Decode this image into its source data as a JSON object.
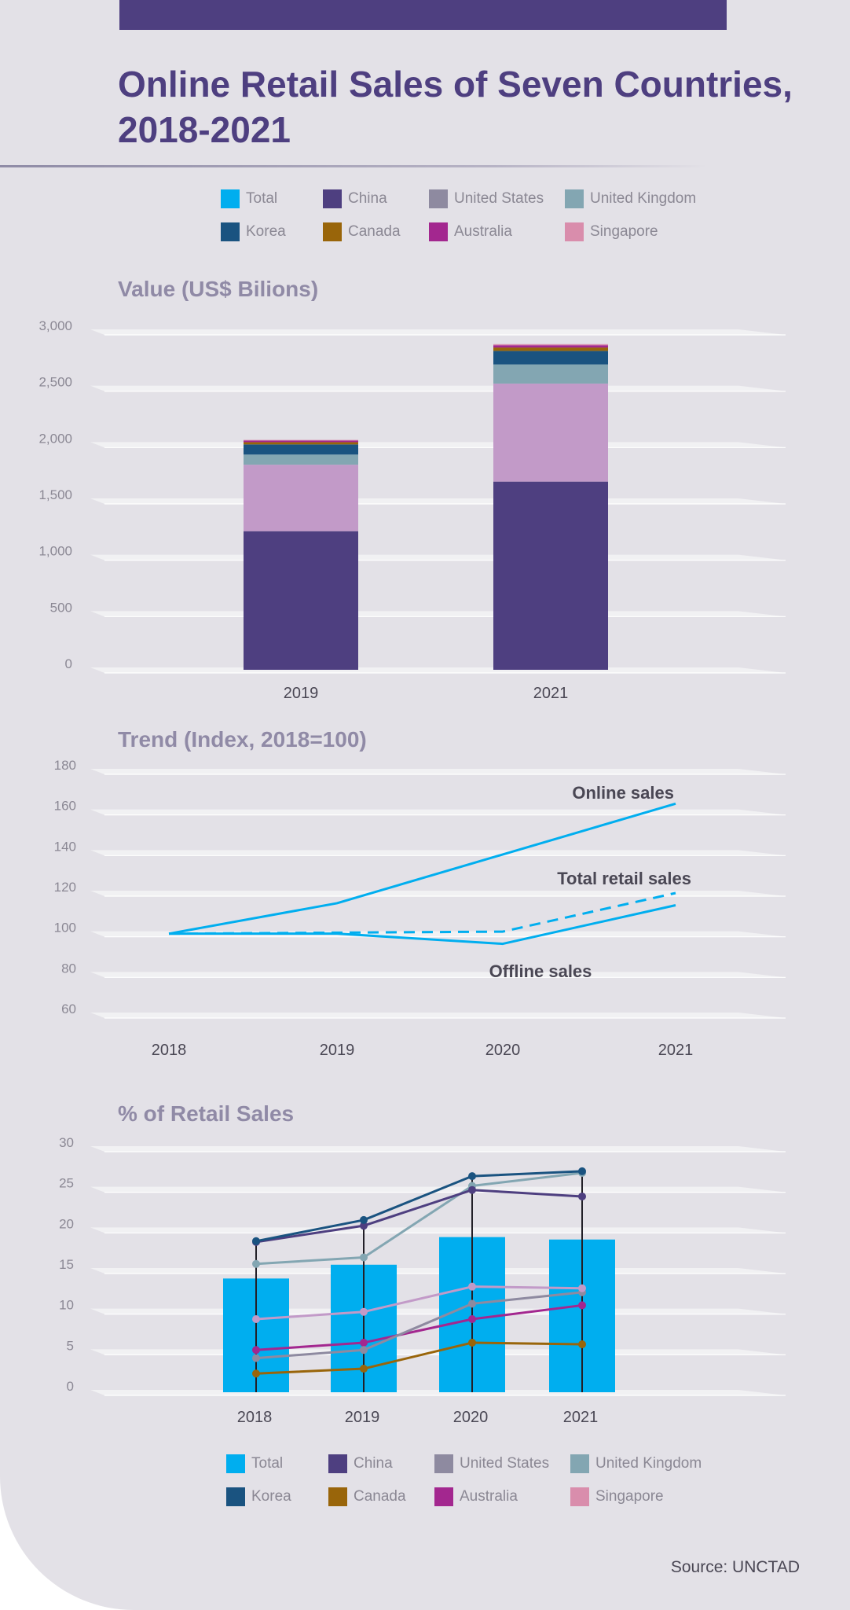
{
  "title_lines": [
    "Online Retail Sales of Seven Countries,",
    "2018-2021"
  ],
  "legend": [
    {
      "label": "Total",
      "color": "#00aeef"
    },
    {
      "label": "China",
      "color": "#4e3f80"
    },
    {
      "label": "United States",
      "color": "#8e8aa0"
    },
    {
      "label": "United Kingdom",
      "color": "#83a6b2"
    },
    {
      "label": "Korea",
      "color": "#1a5380"
    },
    {
      "label": "Canada",
      "color": "#99650a"
    },
    {
      "label": "Australia",
      "color": "#a3278f"
    },
    {
      "label": "Singapore",
      "color": "#d98dac"
    }
  ],
  "source": "Source: UNCTAD",
  "chart_data": [
    {
      "type": "bar",
      "stacked": true,
      "title": "Value (US$ Bilions)",
      "categories": [
        "2019",
        "2021"
      ],
      "ylim": [
        0,
        3000
      ],
      "yticks": [
        "0",
        "500",
        "1,000",
        "1,500",
        "2,000",
        "2,500",
        "3,000"
      ],
      "series": [
        {
          "name": "China",
          "color": "#4e3f80",
          "values": [
            1230,
            1670
          ]
        },
        {
          "name": "United States",
          "color": "#c29ac8",
          "values": [
            590,
            870
          ]
        },
        {
          "name": "United Kingdom",
          "color": "#83a6b2",
          "values": [
            90,
            170
          ]
        },
        {
          "name": "Korea",
          "color": "#1a5380",
          "values": [
            90,
            120
          ]
        },
        {
          "name": "Canada",
          "color": "#99650a",
          "values": [
            20,
            30
          ]
        },
        {
          "name": "Australia",
          "color": "#a3278f",
          "values": [
            15,
            20
          ]
        },
        {
          "name": "Singapore",
          "color": "#d98dac",
          "values": [
            5,
            10
          ]
        }
      ]
    },
    {
      "type": "line",
      "title": "Trend (Index, 2018=100)",
      "x": [
        "2018",
        "2019",
        "2020",
        "2021"
      ],
      "ylim": [
        60,
        180
      ],
      "yticks": [
        "60",
        "80",
        "100",
        "120",
        "140",
        "160",
        "180"
      ],
      "series": [
        {
          "name": "Online sales",
          "color": "#00aeef",
          "dashed": false,
          "values": [
            100,
            115,
            139,
            164
          ]
        },
        {
          "name": "Total retail sales",
          "color": "#00aeef",
          "dashed": true,
          "values": [
            100,
            100.5,
            101,
            120
          ]
        },
        {
          "name": "Offline sales",
          "color": "#00aeef",
          "dashed": false,
          "values": [
            100,
            100,
            95,
            114
          ]
        }
      ]
    },
    {
      "type": "bar+line",
      "title": "% of Retail Sales",
      "categories": [
        "2018",
        "2019",
        "2020",
        "2021"
      ],
      "ylim": [
        0,
        30
      ],
      "yticks": [
        "0",
        "5",
        "10",
        "15",
        "20",
        "25",
        "30"
      ],
      "bars": {
        "name": "Total",
        "color": "#00aeef",
        "values": [
          14,
          15.7,
          19.1,
          18.8
        ]
      },
      "series": [
        {
          "name": "Korea",
          "color": "#1a5380",
          "values": [
            18.6,
            21.2,
            26.6,
            27.2
          ]
        },
        {
          "name": "China",
          "color": "#4e3f80",
          "values": [
            18.5,
            20.5,
            24.9,
            24.1
          ]
        },
        {
          "name": "United Kingdom",
          "color": "#83a6b2",
          "values": [
            15.8,
            16.6,
            25.4,
            27.0
          ]
        },
        {
          "name": "Singapore",
          "color": "#c29ac8",
          "values": [
            9.0,
            9.9,
            13.0,
            12.8
          ]
        },
        {
          "name": "United States",
          "color": "#8e8aa0",
          "values": [
            4.2,
            5.2,
            10.9,
            12.3
          ]
        },
        {
          "name": "Australia",
          "color": "#a3278f",
          "values": [
            5.2,
            6.1,
            9.0,
            10.7
          ]
        },
        {
          "name": "Canada",
          "color": "#99650a",
          "values": [
            2.3,
            2.9,
            6.1,
            5.9
          ]
        }
      ]
    }
  ]
}
